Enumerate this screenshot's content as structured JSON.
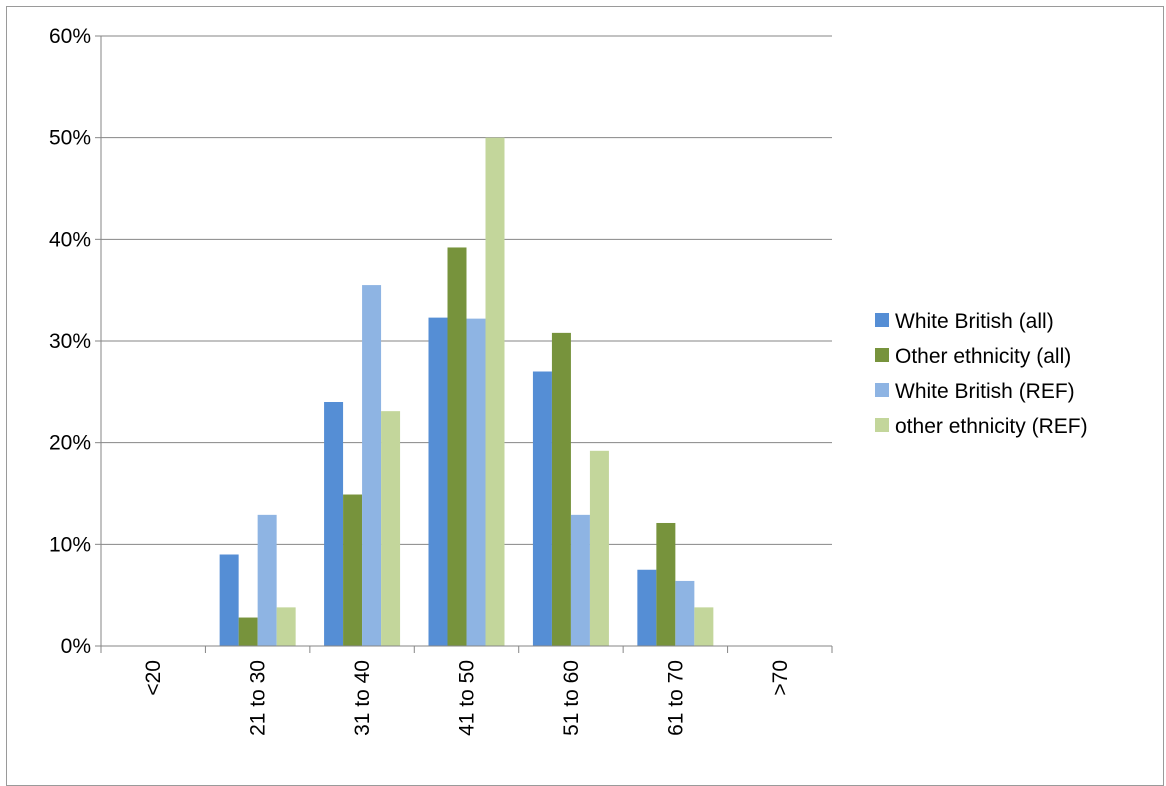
{
  "chart_data": {
    "type": "bar",
    "title": "",
    "xlabel": "",
    "ylabel": "",
    "ylim": [
      0,
      60
    ],
    "yticks": [
      "0%",
      "10%",
      "20%",
      "30%",
      "40%",
      "50%",
      "60%"
    ],
    "y_unit": "%",
    "grid": true,
    "legend_position": "right",
    "categories": [
      "<20",
      "21 to 30",
      "31 to 40",
      "41 to 50",
      "51 to 60",
      "61 to 70",
      ">70"
    ],
    "series": [
      {
        "name": "White British (all)",
        "color": "#558ed5",
        "values": [
          0,
          9.0,
          24.0,
          32.3,
          27.0,
          7.5,
          0
        ]
      },
      {
        "name": "Other ethnicity (all)",
        "color": "#77933c",
        "values": [
          0,
          2.8,
          14.9,
          39.2,
          30.8,
          12.1,
          0
        ]
      },
      {
        "name": "White British (REF)",
        "color": "#8eb4e3",
        "values": [
          0,
          12.9,
          35.5,
          32.2,
          12.9,
          6.4,
          0
        ]
      },
      {
        "name": "other ethnicity  (REF)",
        "color": "#c3d69b",
        "values": [
          0,
          3.8,
          23.1,
          50.0,
          19.2,
          3.8,
          0
        ]
      }
    ]
  }
}
